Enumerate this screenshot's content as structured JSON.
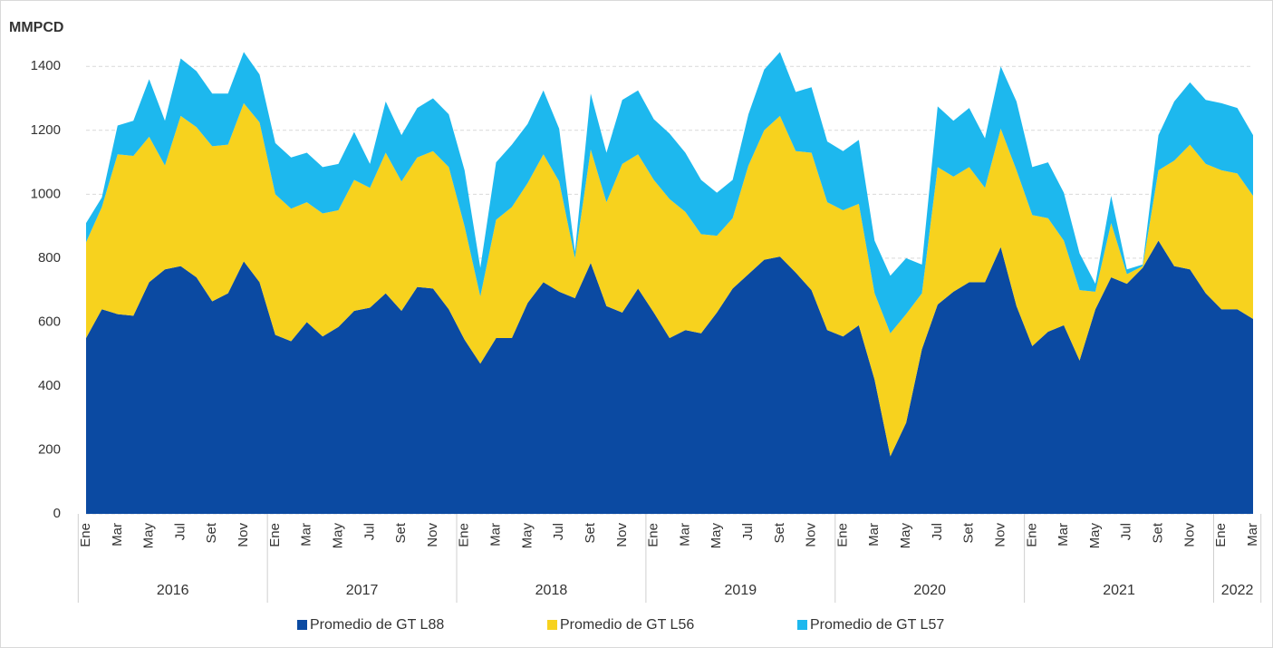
{
  "chart_data": {
    "type": "area",
    "stacked": true,
    "y_label": "MMPCD",
    "categories": [
      "Ene",
      null,
      "Mar",
      null,
      "May",
      null,
      "Jul",
      null,
      "Set",
      null,
      "Nov",
      null,
      "Ene",
      null,
      "Mar",
      null,
      "May",
      null,
      "Jul",
      null,
      "Set",
      null,
      "Nov",
      null,
      "Ene",
      null,
      "Mar",
      null,
      "May",
      null,
      "Jul",
      null,
      "Set",
      null,
      "Nov",
      null,
      "Ene",
      null,
      "Mar",
      null,
      "May",
      null,
      "Jul",
      null,
      "Set",
      null,
      "Nov",
      null,
      "Ene",
      null,
      "Mar",
      null,
      "May",
      null,
      "Jul",
      null,
      "Set",
      null,
      "Nov",
      null,
      "Ene",
      null,
      "Mar",
      null,
      "May",
      null,
      "Jul",
      null,
      "Set",
      null,
      "Nov",
      null,
      "Ene",
      null,
      "Mar"
    ],
    "years": [
      "2016",
      "2017",
      "2018",
      "2019",
      "2020",
      "2021",
      "2022"
    ],
    "series": [
      {
        "name": "Promedio de GT L88",
        "color": "#0b4aa2",
        "values": [
          550,
          640,
          625,
          620,
          725,
          765,
          775,
          740,
          665,
          690,
          790,
          725,
          560,
          540,
          600,
          555,
          585,
          635,
          645,
          690,
          635,
          710,
          705,
          640,
          545,
          470,
          550,
          550,
          660,
          725,
          695,
          675,
          785,
          650,
          630,
          705,
          630,
          550,
          575,
          565,
          630,
          705,
          750,
          795,
          805,
          755,
          700,
          575,
          555,
          590,
          420,
          180,
          285,
          515,
          655,
          695,
          725,
          725,
          835,
          650,
          525,
          570,
          590,
          480,
          640,
          740,
          720,
          770,
          855,
          775,
          765,
          690,
          640,
          640,
          610
        ]
      },
      {
        "name": "Promedio de GT L56",
        "color": "#f7d21e",
        "values": [
          300,
          320,
          500,
          500,
          455,
          325,
          470,
          470,
          485,
          465,
          495,
          500,
          440,
          415,
          375,
          385,
          365,
          410,
          375,
          440,
          405,
          405,
          430,
          445,
          355,
          210,
          370,
          410,
          375,
          400,
          345,
          125,
          355,
          325,
          465,
          420,
          415,
          435,
          370,
          310,
          240,
          220,
          340,
          405,
          440,
          380,
          430,
          400,
          395,
          380,
          270,
          385,
          340,
          175,
          430,
          360,
          360,
          295,
          370,
          425,
          410,
          355,
          265,
          220,
          55,
          170,
          30,
          5,
          220,
          330,
          390,
          405,
          435,
          425,
          385
        ]
      },
      {
        "name": "Promedio de GT L57",
        "color": "#1db8ee",
        "values": [
          60,
          30,
          90,
          110,
          180,
          140,
          180,
          175,
          165,
          160,
          160,
          150,
          160,
          160,
          155,
          145,
          145,
          150,
          75,
          160,
          145,
          155,
          165,
          165,
          175,
          90,
          180,
          195,
          185,
          200,
          165,
          20,
          175,
          155,
          200,
          200,
          190,
          205,
          185,
          170,
          135,
          120,
          160,
          190,
          200,
          185,
          205,
          190,
          185,
          200,
          165,
          180,
          175,
          90,
          190,
          175,
          185,
          155,
          195,
          215,
          150,
          175,
          150,
          115,
          25,
          85,
          15,
          5,
          110,
          185,
          195,
          200,
          210,
          205,
          190
        ]
      }
    ],
    "ylim": [
      0,
      1500
    ],
    "yticks": [
      0,
      200,
      400,
      600,
      800,
      1000,
      1200,
      1400
    ],
    "grid": true,
    "legend": "bottom"
  }
}
